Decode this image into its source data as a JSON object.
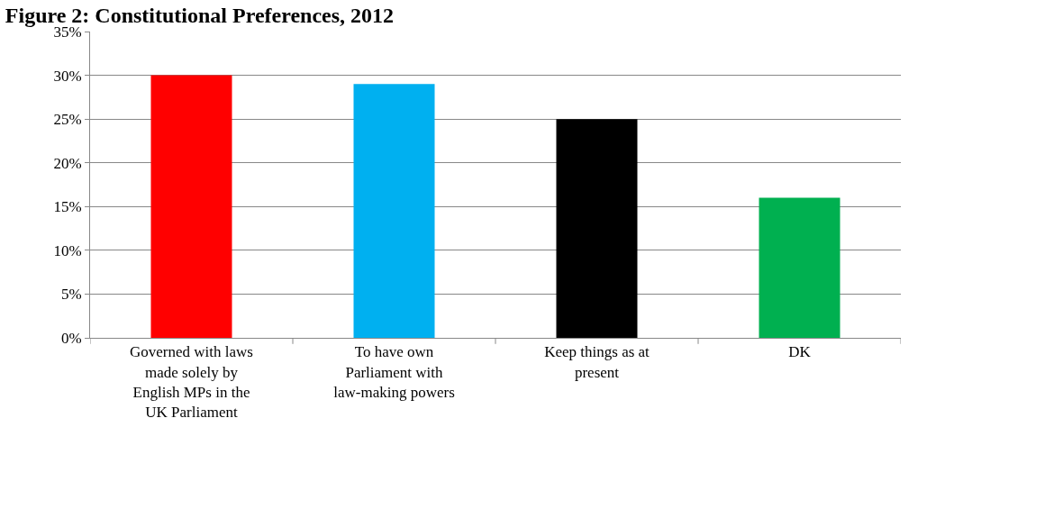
{
  "chart_data": {
    "type": "bar",
    "title": "Figure 2: Constitutional Preferences, 2012",
    "categories": [
      "Governed with laws made solely by English MPs in the UK Parliament",
      "To have own Parliament with law-making powers",
      "Keep things as at present",
      "DK"
    ],
    "values": [
      30,
      29,
      25,
      16
    ],
    "colors": [
      "#ff0000",
      "#00b0f0",
      "#000000",
      "#00b050"
    ],
    "ylim": [
      0,
      35
    ],
    "yticks": [
      {
        "value": 0,
        "label": "0%"
      },
      {
        "value": 5,
        "label": "5%"
      },
      {
        "value": 10,
        "label": "10%"
      },
      {
        "value": 15,
        "label": "15%"
      },
      {
        "value": 20,
        "label": "20%"
      },
      {
        "value": 25,
        "label": "25%"
      },
      {
        "value": 30,
        "label": "30%"
      },
      {
        "value": 35,
        "label": "35%"
      }
    ],
    "grid": "y"
  }
}
